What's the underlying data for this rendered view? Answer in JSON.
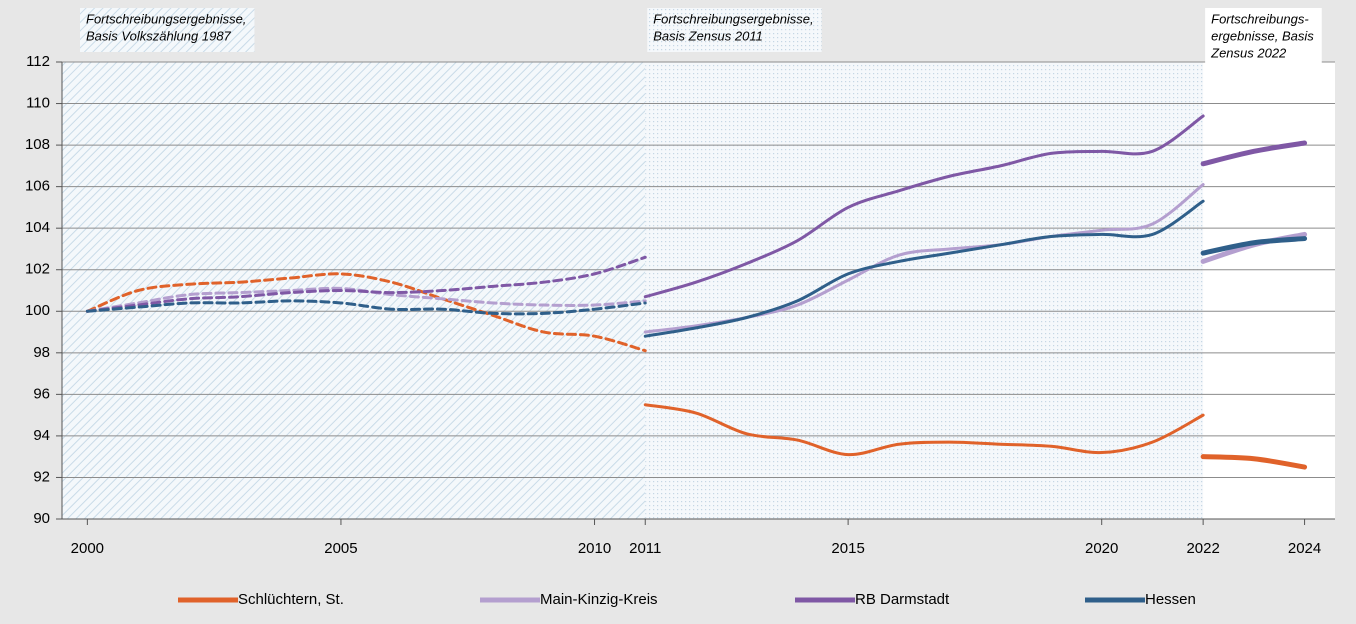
{
  "chart_data": {
    "type": "line",
    "xlim": [
      1999.5,
      2024.6
    ],
    "xticks": [
      2000,
      2005,
      2010,
      2011,
      2015,
      2020,
      2022,
      2024
    ],
    "ylim": [
      90,
      112
    ],
    "yticks": [
      90,
      92,
      94,
      96,
      98,
      100,
      102,
      104,
      106,
      108,
      110,
      112
    ],
    "grid": true,
    "legend": "bottom",
    "periods": [
      {
        "label": [
          "Fortschreibungsergebnisse,",
          "Basis Volkszählung 1987"
        ],
        "style": "dashed",
        "fill": "diagonal",
        "x": [
          2000,
          2001,
          2002,
          2003,
          2004,
          2005,
          2006,
          2007,
          2008,
          2009,
          2010,
          2011
        ]
      },
      {
        "label": [
          "Fortschreibungsergebnisse,",
          "Basis Zensus 2011"
        ],
        "style": "solid",
        "fill": "dots",
        "x": [
          2011,
          2012,
          2013,
          2014,
          2015,
          2016,
          2017,
          2018,
          2019,
          2020,
          2021,
          2022
        ]
      },
      {
        "label": [
          "Fortschreibungs-",
          "ergebnisse, Basis",
          "Zensus 2022"
        ],
        "style": "thick",
        "fill": "none",
        "x": [
          2022,
          2023,
          2024
        ]
      }
    ],
    "series": [
      {
        "name": "Schlüchtern, St.",
        "color": "#e0622a",
        "values": [
          [
            100,
            101.0,
            101.3,
            101.4,
            101.6,
            101.8,
            101.4,
            100.6,
            99.8,
            99.0,
            98.8,
            98.1
          ],
          [
            95.5,
            95.1,
            94.1,
            93.8,
            93.1,
            93.6,
            93.7,
            93.6,
            93.5,
            93.2,
            93.7,
            95.0
          ],
          [
            93.0,
            92.9,
            92.5
          ]
        ]
      },
      {
        "name": "Main-Kinzig-Kreis",
        "color": "#b49fcf",
        "values": [
          [
            100,
            100.4,
            100.8,
            100.9,
            101.0,
            101.1,
            100.8,
            100.6,
            100.4,
            100.3,
            100.3,
            100.5
          ],
          [
            99.0,
            99.3,
            99.7,
            100.3,
            101.5,
            102.7,
            103.0,
            103.2,
            103.6,
            103.9,
            104.2,
            106.1
          ],
          [
            102.4,
            103.2,
            103.7
          ]
        ]
      },
      {
        "name": "RB Darmstadt",
        "color": "#7f58a5",
        "values": [
          [
            100,
            100.3,
            100.6,
            100.7,
            100.9,
            101.0,
            100.9,
            101.0,
            101.2,
            101.4,
            101.8,
            102.6
          ],
          [
            100.7,
            101.4,
            102.3,
            103.4,
            105.0,
            105.8,
            106.5,
            107.0,
            107.6,
            107.7,
            107.7,
            109.4
          ],
          [
            107.1,
            107.7,
            108.1
          ]
        ]
      },
      {
        "name": "Hessen",
        "color": "#2f5f8a",
        "values": [
          [
            100,
            100.2,
            100.4,
            100.4,
            100.5,
            100.4,
            100.1,
            100.1,
            99.9,
            99.9,
            100.1,
            100.4
          ],
          [
            98.8,
            99.2,
            99.7,
            100.5,
            101.8,
            102.4,
            102.8,
            103.2,
            103.6,
            103.7,
            103.7,
            105.3
          ],
          [
            102.8,
            103.3,
            103.5
          ]
        ]
      }
    ]
  }
}
